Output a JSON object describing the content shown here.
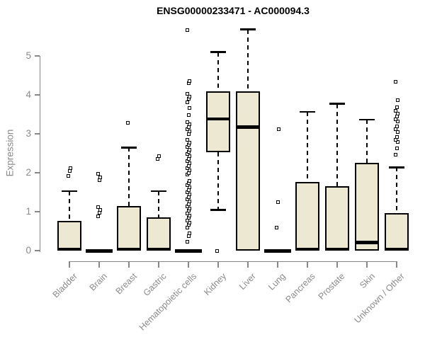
{
  "chart_data": {
    "type": "boxplot",
    "title": "ENSG00000233471 - AC000094.3",
    "ylabel": "Expression",
    "xlabel": "",
    "ylim": [
      0,
      5.8
    ],
    "yticks": [
      0,
      1,
      2,
      3,
      4,
      5
    ],
    "grid": false,
    "legend": null,
    "categories": [
      "Bladder",
      "Brain",
      "Breast",
      "Gastric",
      "Hematopoietic cells",
      "Kidney",
      "Liver",
      "Lung",
      "Pancreas",
      "Prostate",
      "Skin",
      "Unknown / Other"
    ],
    "colors": {
      "box_fill": "#EDE8D1",
      "box_border": "#000000",
      "axis": "#878787",
      "tick_label": "#8a8a8a",
      "title": "#000000"
    },
    "series": [
      {
        "category": "Bladder",
        "q1": 0,
        "median": 0.03,
        "q3": 0.76,
        "whisker_low": 0,
        "whisker_high": 1.53,
        "outliers": [
          1.91,
          2.04,
          2.12
        ]
      },
      {
        "category": "Brain",
        "q1": 0,
        "median": 0,
        "q3": 0,
        "whisker_low": 0,
        "whisker_high": 0,
        "outliers": [
          0.89,
          0.97,
          1.04,
          1.12,
          1.81,
          1.89,
          1.97
        ]
      },
      {
        "category": "Breast",
        "q1": 0,
        "median": 0.03,
        "q3": 1.15,
        "whisker_low": 0,
        "whisker_high": 2.65,
        "outliers": [
          3.29
        ]
      },
      {
        "category": "Gastric",
        "q1": 0,
        "median": 0.03,
        "q3": 0.86,
        "whisker_low": 0,
        "whisker_high": 1.53,
        "outliers": [
          2.35,
          2.42
        ]
      },
      {
        "category": "Hematopoietic cells",
        "q1": 0,
        "median": 0,
        "q3": 0,
        "whisker_low": 0,
        "whisker_high": 0,
        "outliers": [
          0.22,
          0.38,
          0.45,
          0.6,
          0.66,
          0.72,
          0.78,
          0.84,
          0.9,
          0.96,
          1.02,
          1.08,
          1.14,
          1.2,
          1.26,
          1.32,
          1.38,
          1.44,
          1.5,
          1.56,
          1.62,
          1.68,
          1.74,
          1.8,
          1.95,
          2.0,
          2.06,
          2.12,
          2.18,
          2.24,
          2.3,
          2.36,
          2.42,
          2.48,
          2.54,
          2.6,
          2.66,
          2.72,
          2.78,
          2.84,
          3.0,
          3.06,
          3.12,
          3.18,
          3.24,
          3.3,
          3.48,
          3.66,
          3.81,
          3.9,
          3.96,
          4.02,
          4.3,
          4.36,
          5.67
        ]
      },
      {
        "category": "Kidney",
        "q1": 2.52,
        "median": 3.38,
        "q3": 4.1,
        "whisker_low": 1.05,
        "whisker_high": 5.1,
        "outliers": [
          0.0
        ]
      },
      {
        "category": "Liver",
        "q1": 0,
        "median": 3.17,
        "q3": 4.09,
        "whisker_low": 0,
        "whisker_high": 5.68,
        "outliers": []
      },
      {
        "category": "Lung",
        "q1": 0,
        "median": 0,
        "q3": 0,
        "whisker_low": 0,
        "whisker_high": 0,
        "outliers": [
          0.6,
          1.25,
          3.11
        ]
      },
      {
        "category": "Pancreas",
        "q1": 0,
        "median": 0.03,
        "q3": 1.76,
        "whisker_low": 0,
        "whisker_high": 3.56,
        "outliers": []
      },
      {
        "category": "Prostate",
        "q1": 0,
        "median": 0.03,
        "q3": 1.66,
        "whisker_low": 0,
        "whisker_high": 3.77,
        "outliers": []
      },
      {
        "category": "Skin",
        "q1": 0,
        "median": 0.21,
        "q3": 2.26,
        "whisker_low": 0,
        "whisker_high": 3.36,
        "outliers": []
      },
      {
        "category": "Unknown / Other",
        "q1": 0,
        "median": 0.03,
        "q3": 0.97,
        "whisker_low": 0,
        "whisker_high": 2.14,
        "outliers": [
          2.47,
          2.62,
          2.79,
          2.85,
          2.91,
          3.05,
          3.11,
          3.2,
          3.31,
          3.38,
          3.45,
          3.52,
          3.6,
          3.68,
          3.86,
          4.33
        ]
      }
    ]
  }
}
